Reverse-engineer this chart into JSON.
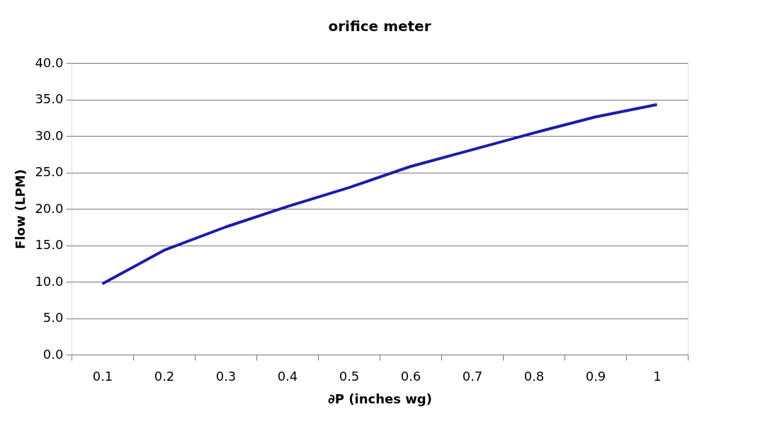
{
  "chart_data": {
    "type": "line",
    "title": "orifice meter",
    "xlabel": "∂P (inches wg)",
    "ylabel": "Flow (LPM)",
    "categories": [
      "0.1",
      "0.2",
      "0.3",
      "0.4",
      "0.5",
      "0.6",
      "0.7",
      "0.8",
      "0.9",
      "1"
    ],
    "series": [
      {
        "color": "#1c1ca8",
        "values": [
          9.7,
          14.3,
          17.5,
          20.3,
          22.9,
          25.8,
          28.1,
          30.4,
          32.6,
          34.3
        ]
      }
    ],
    "ylim": [
      0,
      40
    ],
    "yticks": [
      {
        "value": 0,
        "label": "0.0"
      },
      {
        "value": 5,
        "label": "5.0"
      },
      {
        "value": 10,
        "label": "10.0"
      },
      {
        "value": 15,
        "label": "15.0"
      },
      {
        "value": 20,
        "label": "20.0"
      },
      {
        "value": 25,
        "label": "25.0"
      },
      {
        "value": 30,
        "label": "30.0"
      },
      {
        "value": 35,
        "label": "35.0"
      },
      {
        "value": 40,
        "label": "40.0"
      }
    ],
    "grid": "y",
    "legend": false,
    "marker": "none",
    "line_style": "solid"
  }
}
